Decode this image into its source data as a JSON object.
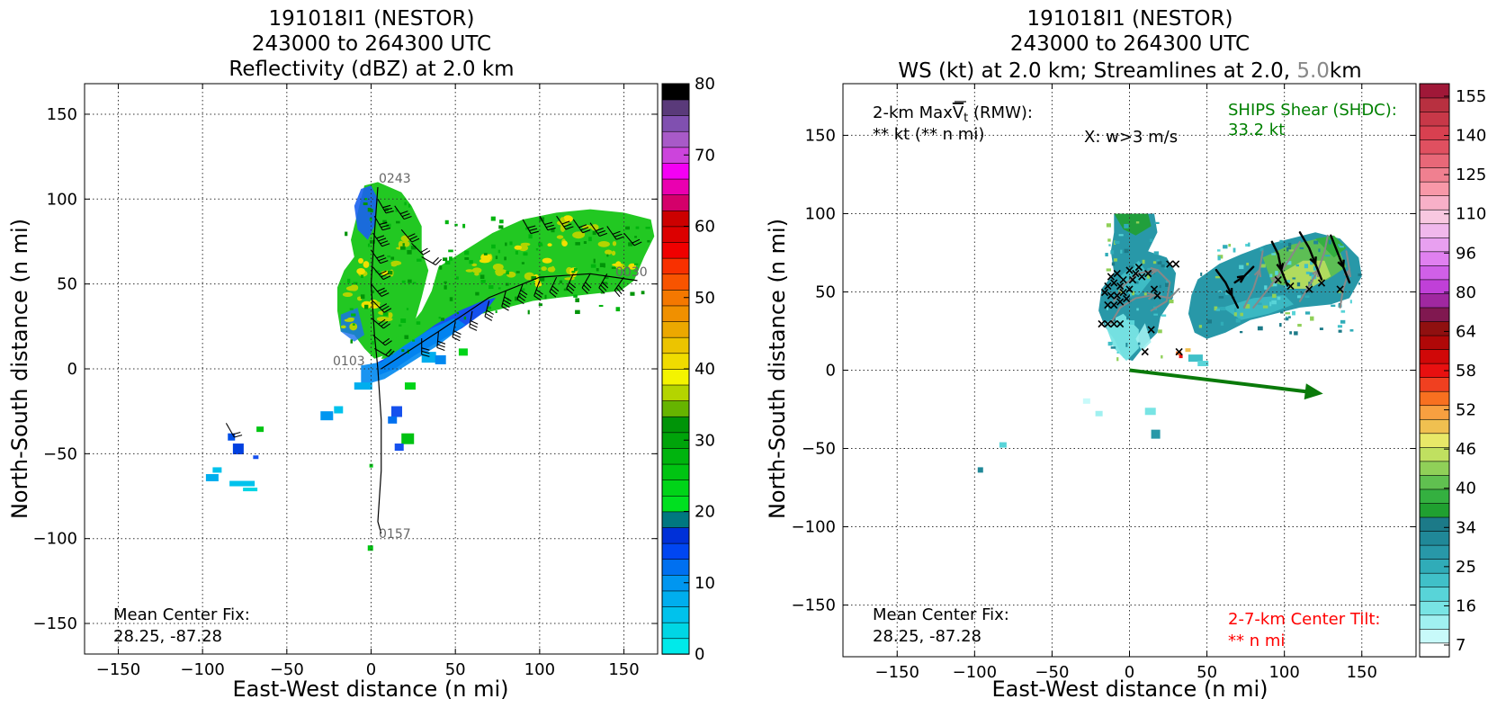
{
  "chart_data": [
    {
      "type": "heatmap",
      "title_lines": [
        "191018I1 (NESTOR)",
        "243000 to 264300 UTC",
        "Reflectivity (dBZ) at 2.0 km"
      ],
      "xlabel": "East-West distance (n mi)",
      "ylabel": "North-South distance (n mi)",
      "xlim": [
        -170,
        170
      ],
      "ylim": [
        -168,
        168
      ],
      "xticks": [
        -150,
        -100,
        -50,
        0,
        50,
        100,
        150
      ],
      "yticks": [
        -150,
        -100,
        -50,
        0,
        50,
        100,
        150
      ],
      "grid": true,
      "colorbar": {
        "min": 0,
        "max": 80,
        "step": 2.5,
        "ticks": [
          0,
          10,
          20,
          30,
          40,
          50,
          60,
          70,
          80
        ],
        "colors": [
          "#00eaea",
          "#00d6e4",
          "#00c2ec",
          "#00aeee",
          "#0096f0",
          "#0070f0",
          "#0046f2",
          "#0030d8",
          "#007880",
          "#00e020",
          "#00d418",
          "#00c412",
          "#00b40e",
          "#00a40a",
          "#009408",
          "#66b400",
          "#b4d400",
          "#f4f400",
          "#f0dc00",
          "#ecc400",
          "#eca800",
          "#f09000",
          "#f47800",
          "#f85400",
          "#f83000",
          "#f00000",
          "#dc0000",
          "#cc0000",
          "#d4006a",
          "#ea00b0",
          "#f400f4",
          "#cc44dc",
          "#a85ac8",
          "#8050b0",
          "#5a3a7a",
          "#000000"
        ]
      },
      "track_labels": [
        "0243",
        "0103",
        "0157",
        "0030"
      ],
      "annotation": {
        "line1": "Mean Center Fix:",
        "line2": "28.25, -87.28"
      }
    },
    {
      "type": "heatmap",
      "title_lines": [
        "191018I1 (NESTOR)",
        "243000 to 264300 UTC"
      ],
      "title_line3": {
        "pre": "WS (kt) at 2.0 km; Streamlines at 2.0, ",
        "mid": "5.0",
        "post": "km",
        "mid_color": "#888888"
      },
      "xlabel": "East-West distance (n mi)",
      "ylabel": "North-South distance (n mi)",
      "xlim": [
        -185,
        185
      ],
      "ylim": [
        -183,
        183
      ],
      "xticks": [
        -150,
        -100,
        -50,
        0,
        50,
        100,
        150
      ],
      "yticks": [
        -150,
        -100,
        -50,
        0,
        50,
        100,
        150
      ],
      "grid": true,
      "colorbar": {
        "ticks": [
          "7",
          "16",
          "25",
          "34",
          "40",
          "46",
          "52",
          "58",
          "64",
          "80",
          "96",
          "110",
          "125",
          "140",
          "155"
        ],
        "colors": [
          "#ffffff",
          "#c8fafa",
          "#a0f0f0",
          "#78e4e4",
          "#58d4d8",
          "#40c0c8",
          "#30acb8",
          "#2898a8",
          "#208898",
          "#1c7a88",
          "#20a030",
          "#34b040",
          "#60c050",
          "#90d058",
          "#c0e060",
          "#e8e868",
          "#f0c050",
          "#f8a040",
          "#f87020",
          "#f04020",
          "#e81010",
          "#d00808",
          "#b00808",
          "#901010",
          "#801850",
          "#a028a0",
          "#c040d8",
          "#d060e8",
          "#e080f0",
          "#e8a0f0",
          "#f0b8ec",
          "#f8c8e0",
          "#f8b0c8",
          "#f898a8",
          "#f08090",
          "#e86878",
          "#e05060",
          "#d84050",
          "#c83848",
          "#b83040",
          "#a01838"
        ]
      },
      "annotations": {
        "rmw_pre": "2-km Max",
        "rmw_v": "V",
        "rmw_sub": "t",
        "rmw_post": " (RMW):",
        "rmw_value": "** kt (** n mi)",
        "wlabel": "X: w>3 m/s",
        "ships_label": "SHIPS Shear (SHDC):",
        "ships_value": "33.2 kt",
        "mean_center_label": "Mean Center Fix:",
        "mean_center_value": "28.25, -87.28",
        "tilt_label": "2-7-km Center Tilt:",
        "tilt_value": "** n mi"
      },
      "shear_vector": {
        "x0": 0,
        "y0": 0,
        "x1": 125,
        "y1": -15
      },
      "colors": {
        "ships": "#008000",
        "tilt": "#ff0000",
        "shear_arrow": "#0a7a0a"
      }
    }
  ]
}
